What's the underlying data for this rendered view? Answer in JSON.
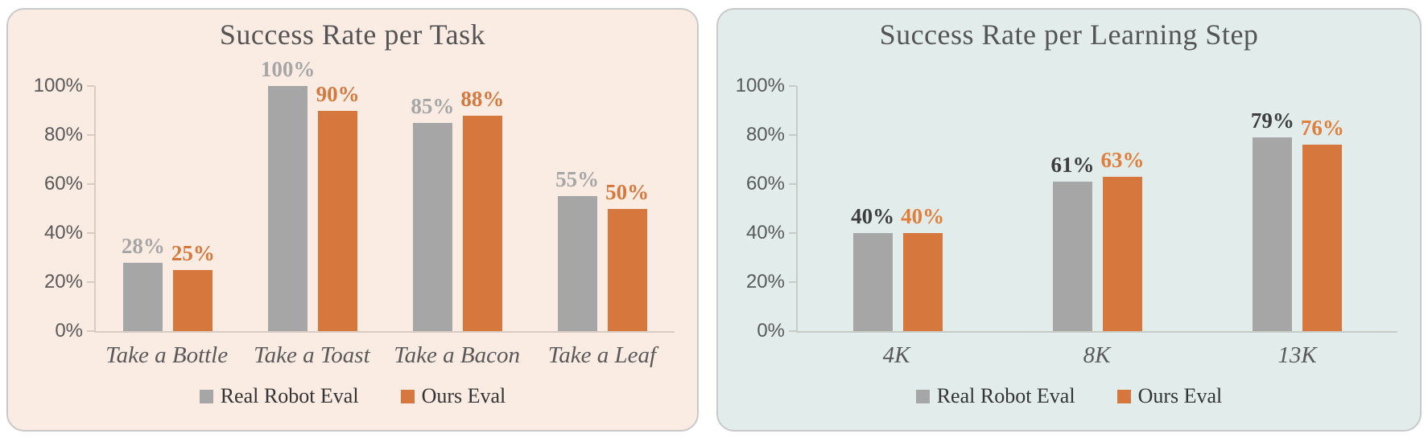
{
  "page": {
    "background": "#ffffff"
  },
  "chart_data": [
    {
      "type": "bar",
      "title": "Success Rate per Task",
      "panel_bg": "#FAECE3",
      "panel_border": "#C9C9C9",
      "categories": [
        "Take a Bottle",
        "Take a Toast",
        "Take a Bacon",
        "Take a Leaf"
      ],
      "series": [
        {
          "name": "Real Robot Eval",
          "color": "#A6A6A6",
          "label_color": "#A6A6A6",
          "values": [
            28,
            100,
            85,
            55
          ]
        },
        {
          "name": "Ours Eval",
          "color": "#D6783E",
          "label_color": "#D6783E",
          "values": [
            25,
            90,
            88,
            50
          ]
        }
      ],
      "value_suffix": "%",
      "ylim": [
        0,
        100
      ],
      "y_ticks": [
        {
          "value": 100,
          "label": "100%"
        },
        {
          "value": 80,
          "label": "80%"
        },
        {
          "value": 60,
          "label": "60%"
        },
        {
          "value": 40,
          "label": "40%"
        },
        {
          "value": 20,
          "label": "20%"
        },
        {
          "value": 0,
          "label": "0%"
        }
      ],
      "grid": false,
      "legend_position": "bottom"
    },
    {
      "type": "bar",
      "title": "Success Rate per Learning Step",
      "panel_bg": "#E1ECEB",
      "panel_border": "#C9C9C9",
      "categories": [
        "4K",
        "8K",
        "13K"
      ],
      "series": [
        {
          "name": "Real Robot Eval",
          "color": "#A6A6A6",
          "label_color": "#3D3D3D",
          "values": [
            40,
            61,
            79
          ]
        },
        {
          "name": "Ours Eval",
          "color": "#D6783E",
          "label_color": "#E07E3C",
          "values": [
            40,
            63,
            76
          ]
        }
      ],
      "value_suffix": "%",
      "ylim": [
        0,
        100
      ],
      "y_ticks": [
        {
          "value": 100,
          "label": "100%"
        },
        {
          "value": 80,
          "label": "80%"
        },
        {
          "value": 60,
          "label": "60%"
        },
        {
          "value": 40,
          "label": "40%"
        },
        {
          "value": 20,
          "label": "20%"
        },
        {
          "value": 0,
          "label": "0%"
        }
      ],
      "grid": false,
      "legend_position": "bottom"
    }
  ]
}
